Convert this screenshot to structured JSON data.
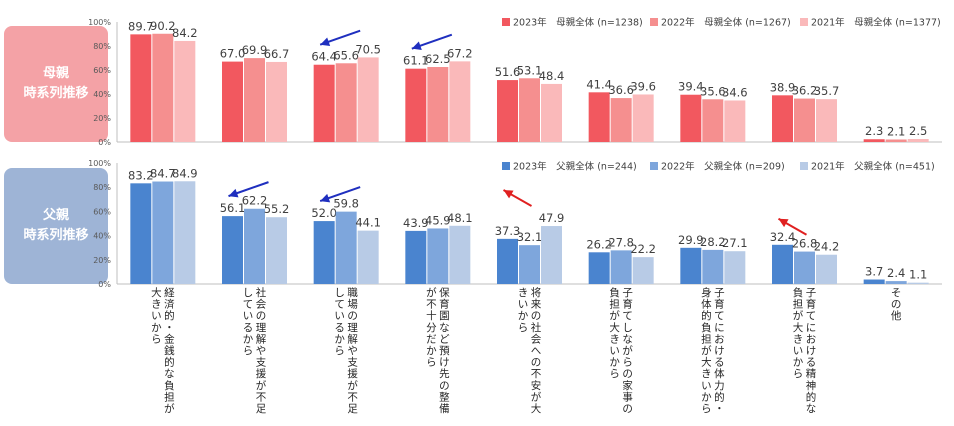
{
  "panels": {
    "mother": {
      "label": "母親\n時系列推移",
      "color": "#f4a2a6"
    },
    "father": {
      "label": "父親\n時系列推移",
      "color": "#9eb4d6"
    }
  },
  "chart_data": [
    {
      "type": "bar",
      "title": "",
      "categories": [
        "経済的・金銭的な負担が大きいから",
        "社会の理解や支援が不足しているから",
        "職場の理解や支援が不足しているから",
        "保育園など預け先の整備が不十分だから",
        "将来の社会への不安が大きいから",
        "子育てしながらの家事の負担が大きいから",
        "子育てにおける体力的・身体的負担が大きいから",
        "子育てにおける精神的な負担が大きいから",
        "その他"
      ],
      "series": [
        {
          "name": "2023年　母親全体 (n=1238)",
          "color": "#f2585f",
          "values": [
            89.7,
            67.0,
            64.4,
            61.1,
            51.6,
            41.4,
            39.4,
            38.9,
            2.3
          ]
        },
        {
          "name": "2022年　母親全体 (n=1267)",
          "color": "#f58f8f",
          "values": [
            90.2,
            69.9,
            65.6,
            62.5,
            53.1,
            36.6,
            35.6,
            36.2,
            2.1
          ]
        },
        {
          "name": "2021年　母親全体 (n=1377)",
          "color": "#fab9ba",
          "values": [
            84.2,
            66.7,
            70.5,
            67.2,
            48.4,
            39.6,
            34.6,
            35.7,
            2.5
          ]
        }
      ],
      "yticks": [
        "0%",
        "20%",
        "40%",
        "60%",
        "80%",
        "100%"
      ],
      "ylim": [
        0,
        100
      ],
      "arrows": [
        {
          "category_index": 2,
          "direction": "down",
          "color": "#1f2fbf"
        },
        {
          "category_index": 3,
          "direction": "down",
          "color": "#1f2fbf"
        }
      ]
    },
    {
      "type": "bar",
      "title": "",
      "categories": [
        "経済的・金銭的な負担が大きいから",
        "社会の理解や支援が不足しているから",
        "職場の理解や支援が不足しているから",
        "保育園など預け先の整備が不十分だから",
        "将来の社会への不安が大きいから",
        "子育てしながらの家事の負担が大きいから",
        "子育てにおける体力的・身体的負担が大きいから",
        "子育てにおける精神的な負担が大きいから",
        "その他"
      ],
      "series": [
        {
          "name": "2023年　父親全体 (n=244)",
          "color": "#4a84cf",
          "values": [
            83.2,
            56.1,
            52.0,
            43.9,
            37.3,
            26.2,
            29.9,
            32.4,
            3.7
          ]
        },
        {
          "name": "2022年　父親全体 (n=209)",
          "color": "#7ea6dc",
          "values": [
            84.7,
            62.2,
            59.8,
            45.9,
            32.1,
            27.8,
            28.2,
            26.8,
            2.4
          ]
        },
        {
          "name": "2021年　父親全体 (n=451)",
          "color": "#b8cbe6",
          "values": [
            84.9,
            55.2,
            44.1,
            48.1,
            47.9,
            22.2,
            27.1,
            24.2,
            1.1
          ]
        }
      ],
      "yticks": [
        "0%",
        "20%",
        "40%",
        "60%",
        "80%",
        "100%"
      ],
      "ylim": [
        0,
        100
      ],
      "arrows": [
        {
          "category_index": 1,
          "direction": "down",
          "color": "#1f2fbf"
        },
        {
          "category_index": 2,
          "direction": "down",
          "color": "#1f2fbf"
        },
        {
          "category_index": 4,
          "direction": "up",
          "color": "#e02020"
        },
        {
          "category_index": 7,
          "direction": "up",
          "color": "#e02020"
        }
      ]
    }
  ]
}
